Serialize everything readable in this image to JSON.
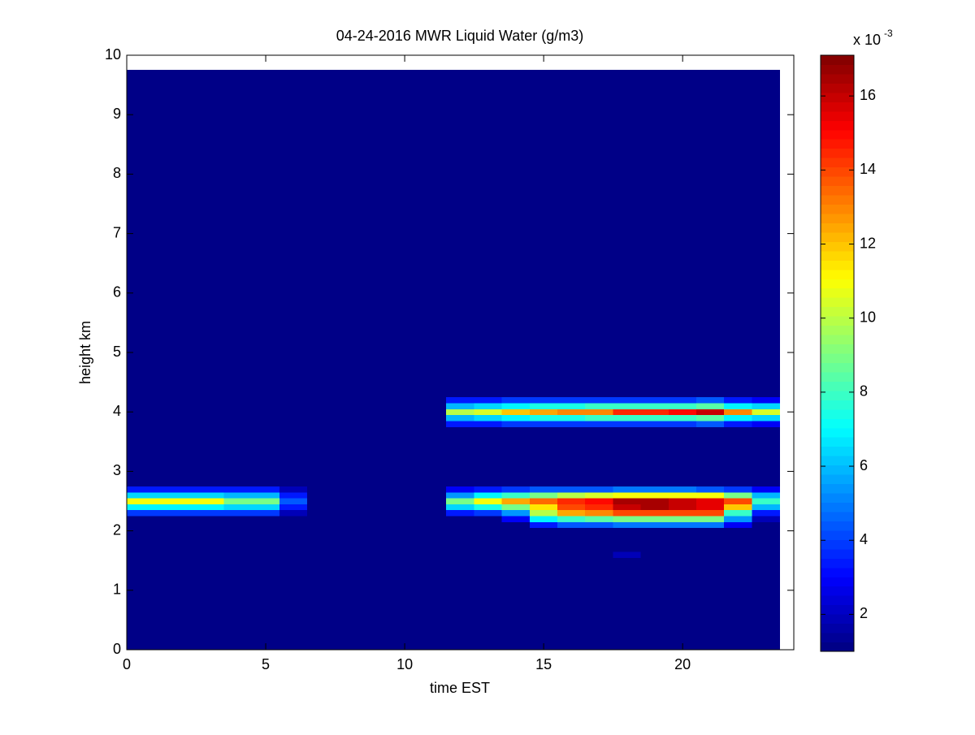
{
  "chart_data": {
    "type": "heatmap",
    "title": "04-24-2016 MWR Liquid Water (g/m3)",
    "xlabel": "time EST",
    "ylabel": "height km",
    "colorbar_label": "x 10",
    "colorbar_exponent": "-3",
    "colormap": "jet",
    "xlim": [
      0,
      24
    ],
    "xticks": [
      0,
      5,
      10,
      15,
      20
    ],
    "ylim": [
      0,
      10
    ],
    "yticks": [
      0,
      1,
      2,
      3,
      4,
      5,
      6,
      7,
      8,
      9,
      10
    ],
    "clim": [
      1,
      17.1
    ],
    "cticks": [
      2,
      4,
      6,
      8,
      10,
      12,
      14,
      16
    ],
    "x_edges": [
      -0.5,
      0.5,
      1.5,
      2.5,
      3.5,
      4.5,
      5.5,
      6.5,
      7.5,
      8.5,
      9.5,
      10.5,
      11.5,
      12.5,
      13.5,
      14.5,
      15.5,
      16.5,
      17.5,
      18.5,
      19.5,
      20.5,
      21.5,
      22.5,
      23.5
    ],
    "y_edges": [
      0,
      1.55,
      1.65,
      2.05,
      2.15,
      2.25,
      2.35,
      2.45,
      2.55,
      2.65,
      2.75,
      3.75,
      3.85,
      3.95,
      4.05,
      4.15,
      4.25,
      9.75
    ],
    "z": [
      [
        1,
        1,
        1,
        1,
        1,
        1,
        1,
        1,
        1,
        1,
        1,
        1,
        1,
        1,
        1,
        1,
        1,
        1,
        1,
        1,
        1,
        1,
        1,
        1
      ],
      [
        1,
        1,
        1,
        1,
        1,
        1,
        1,
        1,
        1,
        1,
        1,
        1,
        1,
        1,
        1,
        1,
        1,
        1,
        1.8,
        1,
        1,
        1,
        1,
        1
      ],
      [
        1,
        1,
        1,
        1,
        1,
        1,
        1,
        1,
        1,
        1,
        1,
        1,
        1,
        1,
        1,
        1,
        1,
        1,
        1,
        1,
        1,
        1,
        1,
        1
      ],
      [
        1,
        1,
        1,
        1,
        1,
        1,
        1,
        1,
        1,
        1,
        1,
        1,
        1,
        1,
        1,
        3.5,
        4.5,
        4.5,
        5,
        5,
        5,
        5,
        3,
        1
      ],
      [
        1,
        1,
        1,
        1,
        1,
        1,
        1,
        1,
        1,
        1,
        1,
        1,
        1,
        1,
        3,
        7,
        8,
        8.5,
        9,
        9,
        9,
        9,
        5.5,
        2
      ],
      [
        4,
        4,
        4,
        4,
        3.8,
        3.8,
        2,
        1,
        1,
        1,
        1,
        1,
        3.5,
        4,
        5.5,
        10,
        12.5,
        13,
        14,
        14,
        14,
        14,
        8,
        3.5
      ],
      [
        7,
        7,
        7,
        7,
        6.5,
        6.5,
        3.5,
        1,
        1,
        1,
        1,
        1,
        6.5,
        7.5,
        9,
        11.5,
        14,
        14.5,
        16,
        16.5,
        16,
        15.5,
        12,
        6
      ],
      [
        11,
        11,
        11,
        11,
        9,
        9,
        4.5,
        1,
        1,
        1,
        1,
        1,
        9,
        11,
        12.5,
        13.5,
        14.5,
        15,
        16.5,
        16.5,
        16,
        15.5,
        14,
        8
      ],
      [
        6.5,
        6.5,
        6.5,
        6.5,
        5.8,
        5.8,
        3.5,
        1,
        1,
        1,
        1,
        1,
        5.5,
        7,
        8,
        9,
        10,
        10.5,
        11,
        11,
        11,
        11,
        9,
        6
      ],
      [
        3.5,
        3.5,
        3.5,
        3.5,
        3.5,
        3.5,
        2,
        1,
        1,
        1,
        1,
        1,
        3,
        3.5,
        4,
        4.5,
        4.5,
        4.5,
        5,
        5,
        5,
        4.5,
        4,
        3
      ],
      [
        1,
        1,
        1,
        1,
        1,
        1,
        1,
        1,
        1,
        1,
        1,
        1,
        1,
        1,
        1,
        1,
        1,
        1,
        1,
        1,
        1,
        1,
        1,
        1
      ],
      [
        1,
        1,
        1,
        1,
        1,
        1,
        1,
        1,
        1,
        1,
        1,
        1,
        3.5,
        3.5,
        4,
        4,
        4,
        4,
        4,
        4,
        4,
        4.5,
        3.5,
        3
      ],
      [
        1,
        1,
        1,
        1,
        1,
        1,
        1,
        1,
        1,
        1,
        1,
        1,
        6,
        6.5,
        7,
        7.5,
        7.5,
        8,
        8,
        8,
        8,
        8.5,
        7,
        6.5
      ],
      [
        1,
        1,
        1,
        1,
        1,
        1,
        1,
        1,
        1,
        1,
        1,
        1,
        10,
        10.5,
        12,
        12.5,
        13,
        13,
        14.5,
        14.5,
        15,
        16,
        13,
        10.5
      ],
      [
        1,
        1,
        1,
        1,
        1,
        1,
        1,
        1,
        1,
        1,
        1,
        1,
        6,
        6.5,
        7,
        7.5,
        7.5,
        8,
        8,
        8,
        8,
        8.5,
        7,
        6.5
      ],
      [
        1,
        1,
        1,
        1,
        1,
        1,
        1,
        1,
        1,
        1,
        1,
        1,
        3.5,
        3.5,
        4,
        4,
        4,
        4,
        4,
        4,
        4,
        4.5,
        3.5,
        3
      ],
      [
        1,
        1,
        1,
        1,
        1,
        1,
        1,
        1,
        1,
        1,
        1,
        1,
        1,
        1,
        1,
        1,
        1,
        1,
        1,
        1,
        1,
        1,
        1,
        1
      ]
    ]
  }
}
